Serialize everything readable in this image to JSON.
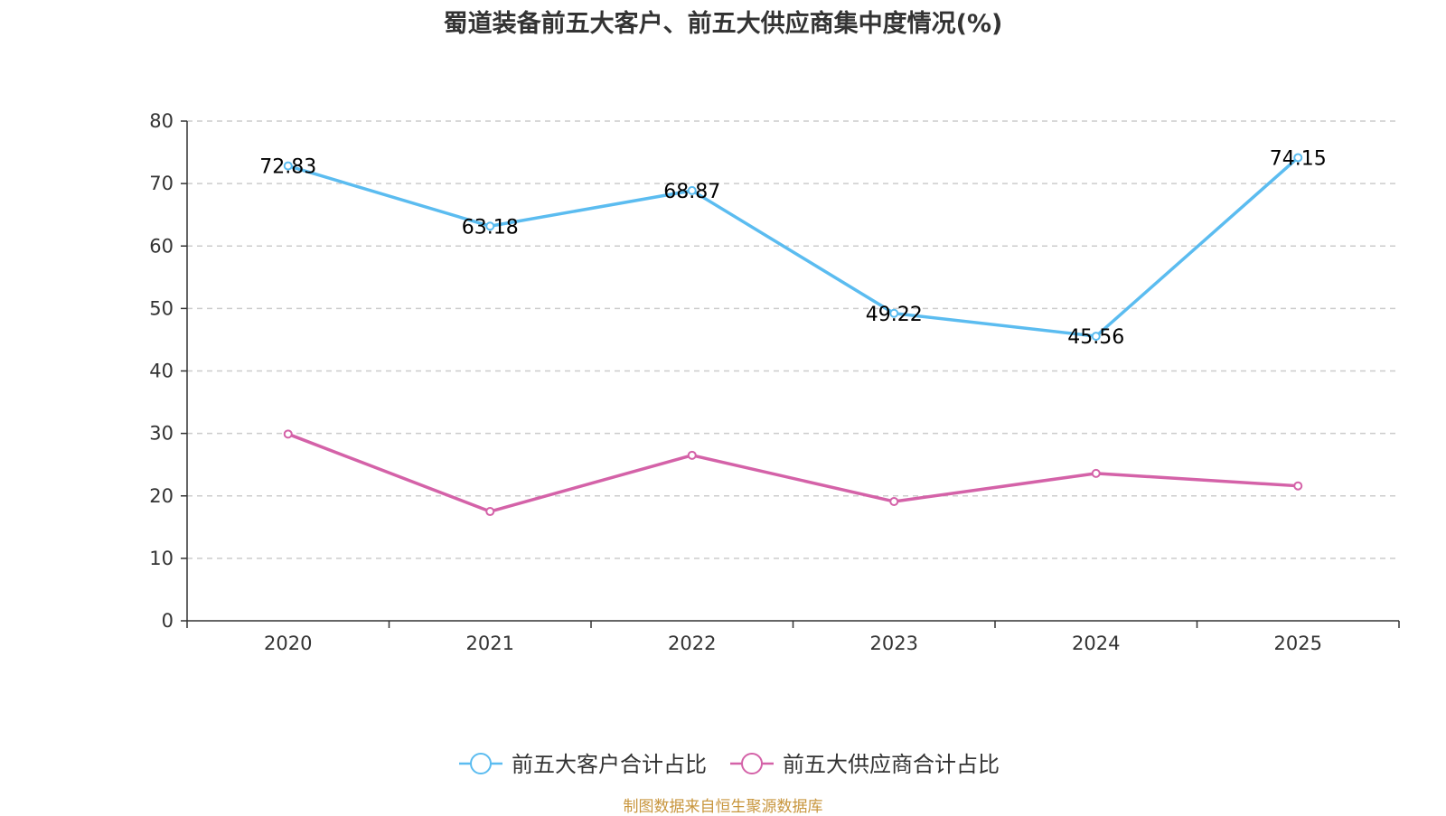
{
  "chart_data": {
    "type": "line",
    "title": "蜀道装备前五大客户、前五大供应商集中度情况(%)",
    "categories": [
      "2020",
      "2021",
      "2022",
      "2023",
      "2024",
      "2025"
    ],
    "series": [
      {
        "name": "前五大客户合计占比",
        "color": "#5bbcf0",
        "values": [
          72.83,
          63.18,
          68.87,
          49.22,
          45.56,
          74.15
        ],
        "show_labels": true
      },
      {
        "name": "前五大供应商合计占比",
        "color": "#d462a8",
        "values": [
          29.9,
          17.5,
          26.5,
          19.1,
          23.6,
          21.6
        ],
        "show_labels": false
      }
    ],
    "ylim": [
      0,
      80
    ],
    "yticks": [
      0,
      10,
      20,
      30,
      40,
      50,
      60,
      70,
      80
    ],
    "grid": "dashed-horizontal",
    "legend": "bottom-center",
    "xlabel": "",
    "ylabel": ""
  },
  "source_note": "制图数据来自恒生聚源数据库"
}
